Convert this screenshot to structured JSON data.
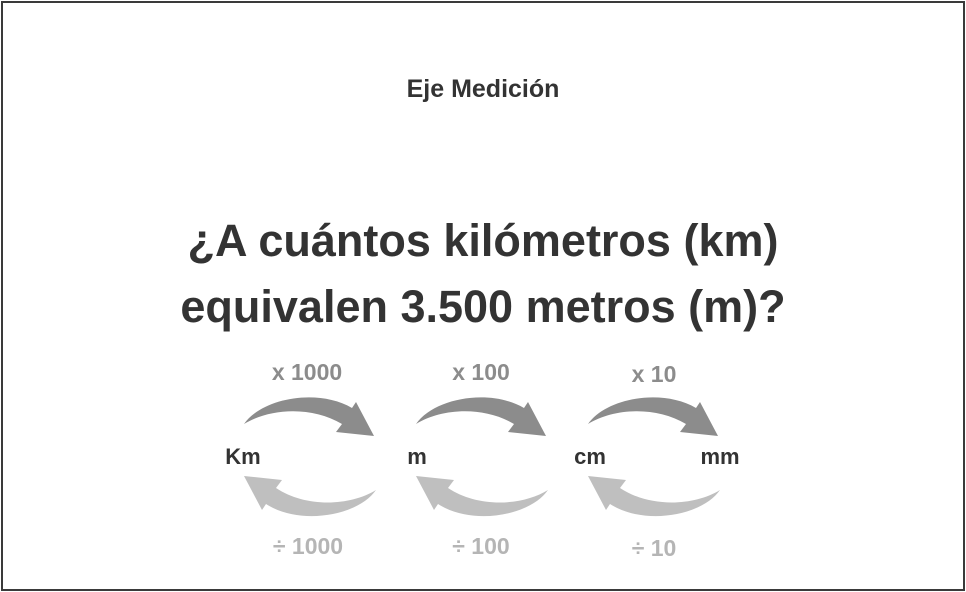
{
  "subject": "Eje Medición",
  "question": {
    "line1": "¿A cuántos kilómetros (km)",
    "line2": "equivalen 3.500 metros (m)?"
  },
  "units": [
    "Km",
    "m",
    "cm",
    "mm"
  ],
  "multipliers": [
    "x 1000",
    "x 100",
    "x 10"
  ],
  "divisors": [
    "÷ 1000",
    "÷ 100",
    "÷ 10"
  ],
  "colors": {
    "text": "#333333",
    "multiply_arrow": "#8c8c8c",
    "divide_arrow": "#bfbfbf"
  }
}
